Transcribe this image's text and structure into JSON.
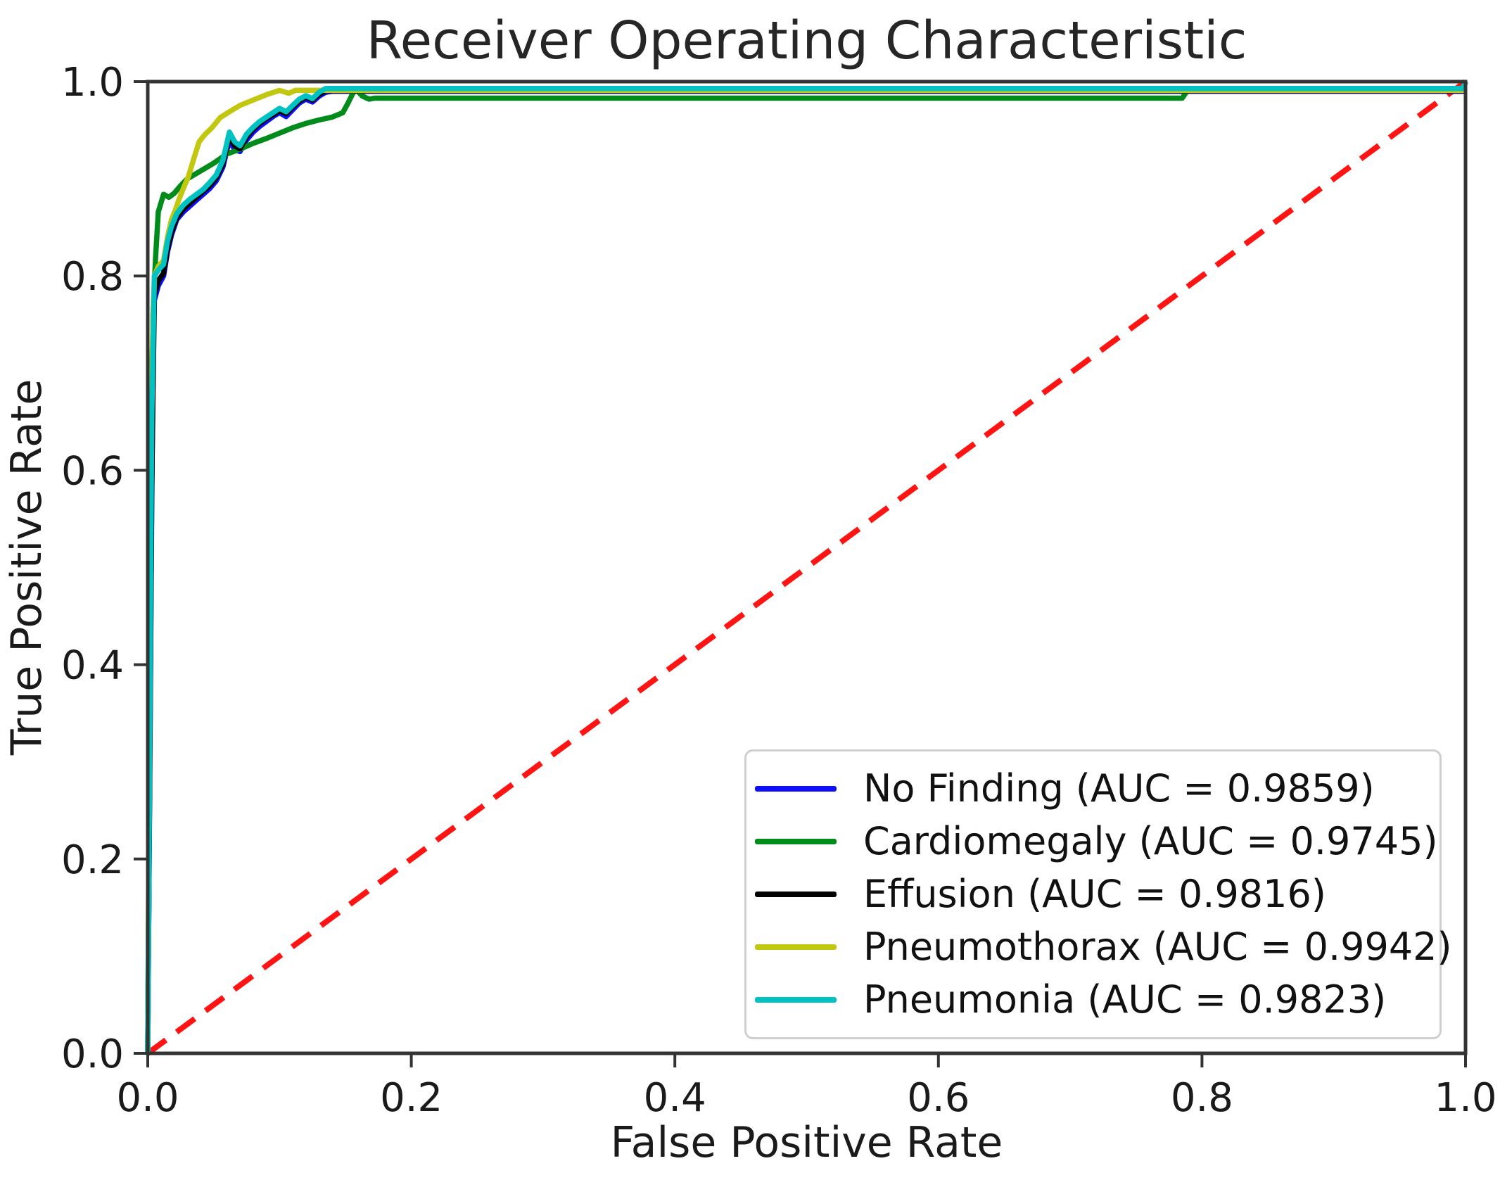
{
  "figure": {
    "title": "Receiver Operating Characteristic",
    "x_axis_label": "False Positive Rate",
    "y_axis_label": "True Positive Rate"
  },
  "chart_data": {
    "type": "line",
    "title": "Receiver Operating Characteristic",
    "xlabel": "False Positive Rate",
    "ylabel": "True Positive Rate",
    "xlim": [
      0.0,
      1.0
    ],
    "ylim": [
      0.0,
      1.0
    ],
    "x_ticks": [
      "0.0",
      "0.2",
      "0.4",
      "0.6",
      "0.8",
      "1.0"
    ],
    "y_ticks": [
      "0.0",
      "0.2",
      "0.4",
      "0.6",
      "0.8",
      "1.0"
    ],
    "grid": false,
    "legend_position": "lower right",
    "axis_color": "#333333",
    "text_color": "#1a1a1a",
    "reference_line": {
      "name": "diagonal-reference",
      "color": "#ff1414",
      "style": "dashed",
      "points": [
        [
          0,
          0
        ],
        [
          1,
          1
        ]
      ]
    },
    "series": [
      {
        "name": "No Finding",
        "auc": 0.9859,
        "legend_label": "No Finding (AUC = 0.9859)",
        "color": "#0f0fff",
        "points": [
          [
            0,
            0
          ],
          [
            0.003,
            0.56
          ],
          [
            0.004,
            0.72
          ],
          [
            0.005,
            0.775
          ],
          [
            0.008,
            0.79
          ],
          [
            0.012,
            0.8
          ],
          [
            0.015,
            0.825
          ],
          [
            0.018,
            0.842
          ],
          [
            0.022,
            0.858
          ],
          [
            0.027,
            0.866
          ],
          [
            0.032,
            0.872
          ],
          [
            0.037,
            0.878
          ],
          [
            0.042,
            0.884
          ],
          [
            0.047,
            0.89
          ],
          [
            0.052,
            0.898
          ],
          [
            0.057,
            0.912
          ],
          [
            0.062,
            0.94
          ],
          [
            0.066,
            0.93
          ],
          [
            0.07,
            0.928
          ],
          [
            0.075,
            0.94
          ],
          [
            0.08,
            0.948
          ],
          [
            0.085,
            0.954
          ],
          [
            0.09,
            0.959
          ],
          [
            0.095,
            0.964
          ],
          [
            0.1,
            0.968
          ],
          [
            0.105,
            0.964
          ],
          [
            0.11,
            0.971
          ],
          [
            0.115,
            0.978
          ],
          [
            0.12,
            0.982
          ],
          [
            0.125,
            0.979
          ],
          [
            0.13,
            0.985
          ],
          [
            0.135,
            0.989
          ],
          [
            0.14,
            0.99
          ],
          [
            0.998,
            0.99
          ],
          [
            1,
            1
          ]
        ]
      },
      {
        "name": "Cardiomegaly",
        "auc": 0.9745,
        "legend_label": "Cardiomegaly (AUC = 0.9745)",
        "color": "#008c1a",
        "points": [
          [
            0,
            0
          ],
          [
            0.002,
            0.5
          ],
          [
            0.004,
            0.76
          ],
          [
            0.006,
            0.82
          ],
          [
            0.008,
            0.866
          ],
          [
            0.012,
            0.884
          ],
          [
            0.016,
            0.881
          ],
          [
            0.02,
            0.885
          ],
          [
            0.025,
            0.893
          ],
          [
            0.03,
            0.9
          ],
          [
            0.04,
            0.908
          ],
          [
            0.05,
            0.916
          ],
          [
            0.06,
            0.9255
          ],
          [
            0.07,
            0.9305
          ],
          [
            0.08,
            0.9365
          ],
          [
            0.09,
            0.9415
          ],
          [
            0.1,
            0.947
          ],
          [
            0.11,
            0.9525
          ],
          [
            0.12,
            0.957
          ],
          [
            0.13,
            0.9605
          ],
          [
            0.14,
            0.9635
          ],
          [
            0.148,
            0.968
          ],
          [
            0.152,
            0.978
          ],
          [
            0.156,
            0.989
          ],
          [
            0.159,
            0.9905
          ],
          [
            0.163,
            0.985
          ],
          [
            0.168,
            0.982
          ],
          [
            0.172,
            0.983
          ],
          [
            0.785,
            0.983
          ],
          [
            0.79,
            0.993
          ],
          [
            0.998,
            0.993
          ],
          [
            1,
            1
          ]
        ]
      },
      {
        "name": "Effusion",
        "auc": 0.9816,
        "legend_label": "Effusion (AUC = 0.9816)",
        "color": "#000000",
        "points": [
          [
            0,
            0
          ],
          [
            0.003,
            0.58
          ],
          [
            0.005,
            0.78
          ],
          [
            0.008,
            0.795
          ],
          [
            0.012,
            0.803
          ],
          [
            0.015,
            0.828
          ],
          [
            0.018,
            0.845
          ],
          [
            0.022,
            0.86
          ],
          [
            0.027,
            0.869
          ],
          [
            0.032,
            0.875
          ],
          [
            0.037,
            0.881
          ],
          [
            0.042,
            0.887
          ],
          [
            0.047,
            0.893
          ],
          [
            0.052,
            0.901
          ],
          [
            0.057,
            0.915
          ],
          [
            0.062,
            0.944
          ],
          [
            0.066,
            0.934
          ],
          [
            0.07,
            0.931
          ],
          [
            0.075,
            0.943
          ],
          [
            0.08,
            0.951
          ],
          [
            0.085,
            0.957
          ],
          [
            0.09,
            0.962
          ],
          [
            0.095,
            0.966
          ],
          [
            0.1,
            0.97
          ],
          [
            0.105,
            0.967
          ],
          [
            0.11,
            0.974
          ],
          [
            0.115,
            0.98
          ],
          [
            0.12,
            0.984
          ],
          [
            0.125,
            0.981
          ],
          [
            0.13,
            0.987
          ],
          [
            0.135,
            0.9905
          ],
          [
            0.998,
            0.9905
          ],
          [
            1,
            1
          ]
        ]
      },
      {
        "name": "Pneumothorax",
        "auc": 0.9942,
        "legend_label": "Pneumothorax (AUC = 0.9942)",
        "color": "#c2c70f",
        "points": [
          [
            0,
            0
          ],
          [
            0.003,
            0.7
          ],
          [
            0.005,
            0.8
          ],
          [
            0.008,
            0.81
          ],
          [
            0.012,
            0.816
          ],
          [
            0.015,
            0.84
          ],
          [
            0.018,
            0.858
          ],
          [
            0.021,
            0.868
          ],
          [
            0.024,
            0.88
          ],
          [
            0.027,
            0.89
          ],
          [
            0.031,
            0.903
          ],
          [
            0.035,
            0.921
          ],
          [
            0.039,
            0.938
          ],
          [
            0.043,
            0.945
          ],
          [
            0.049,
            0.953
          ],
          [
            0.055,
            0.963
          ],
          [
            0.062,
            0.969
          ],
          [
            0.07,
            0.9755
          ],
          [
            0.08,
            0.981
          ],
          [
            0.09,
            0.9865
          ],
          [
            0.1,
            0.991
          ],
          [
            0.107,
            0.988
          ],
          [
            0.112,
            0.991
          ],
          [
            0.998,
            0.991
          ],
          [
            1,
            1
          ]
        ]
      },
      {
        "name": "Pneumonia",
        "auc": 0.9823,
        "legend_label": "Pneumonia (AUC = 0.9823)",
        "color": "#00c2c2",
        "points": [
          [
            0,
            0
          ],
          [
            0.003,
            0.65
          ],
          [
            0.005,
            0.8
          ],
          [
            0.008,
            0.806
          ],
          [
            0.012,
            0.812
          ],
          [
            0.015,
            0.836
          ],
          [
            0.018,
            0.851
          ],
          [
            0.022,
            0.864
          ],
          [
            0.027,
            0.873
          ],
          [
            0.032,
            0.879
          ],
          [
            0.037,
            0.884
          ],
          [
            0.042,
            0.889
          ],
          [
            0.047,
            0.896
          ],
          [
            0.052,
            0.904
          ],
          [
            0.057,
            0.919
          ],
          [
            0.062,
            0.948
          ],
          [
            0.066,
            0.938
          ],
          [
            0.07,
            0.934
          ],
          [
            0.075,
            0.946
          ],
          [
            0.08,
            0.953
          ],
          [
            0.085,
            0.959
          ],
          [
            0.09,
            0.9635
          ],
          [
            0.095,
            0.968
          ],
          [
            0.1,
            0.9725
          ],
          [
            0.105,
            0.969
          ],
          [
            0.11,
            0.9755
          ],
          [
            0.115,
            0.982
          ],
          [
            0.12,
            0.9855
          ],
          [
            0.125,
            0.9825
          ],
          [
            0.13,
            0.989
          ],
          [
            0.135,
            0.993
          ],
          [
            0.998,
            0.993
          ],
          [
            1,
            1
          ]
        ]
      }
    ]
  }
}
